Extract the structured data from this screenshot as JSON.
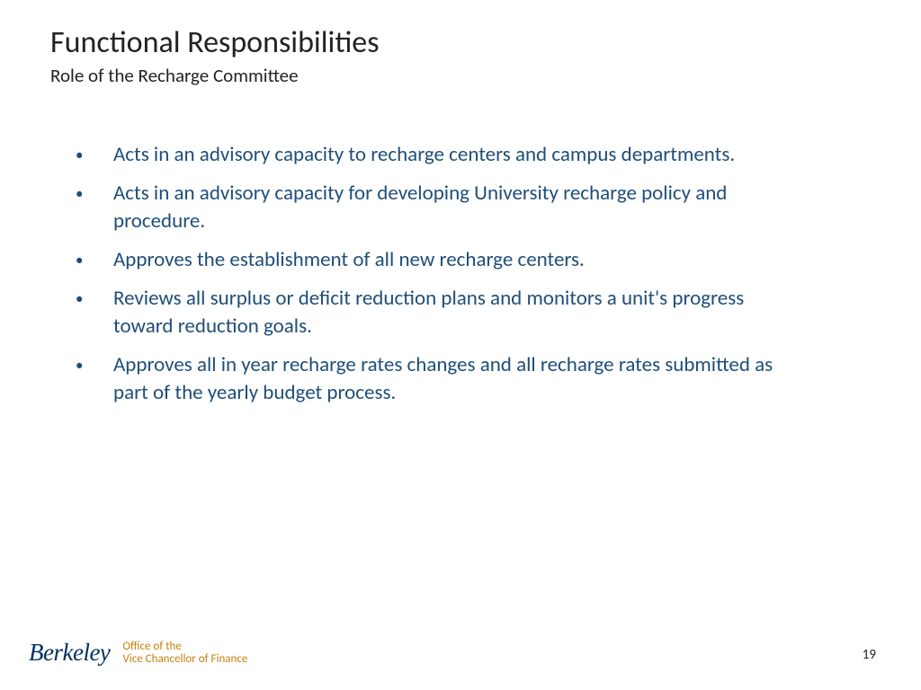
{
  "title": "Functional Responsibilities",
  "subtitle": "Role of the Recharge Committee",
  "bullets": [
    "Acts in an advisory capacity to recharge centers and campus departments.",
    "Acts in an advisory capacity for developing University recharge policy and procedure.",
    "Approves the establishment of all new recharge centers.",
    "Reviews all surplus or deficit reduction plans and monitors a unit's progress toward reduction goals.",
    "Approves all in year recharge rates changes and all recharge rates submitted as part of the yearly budget process."
  ],
  "footer": {
    "logo_text": "Berkeley",
    "office_line1": "Office of the",
    "office_line2": "Vice Chancellor of Finance"
  },
  "page_number": "19",
  "colors": {
    "title_color": "#222222",
    "body_text_color": "#1f4e79",
    "logo_color": "#003262",
    "office_color": "#c4820e",
    "background": "#ffffff"
  },
  "typography": {
    "title_fontsize": 34,
    "subtitle_fontsize": 21,
    "bullet_fontsize": 23,
    "logo_fontsize": 27,
    "office_fontsize": 13,
    "pagenum_fontsize": 15
  }
}
